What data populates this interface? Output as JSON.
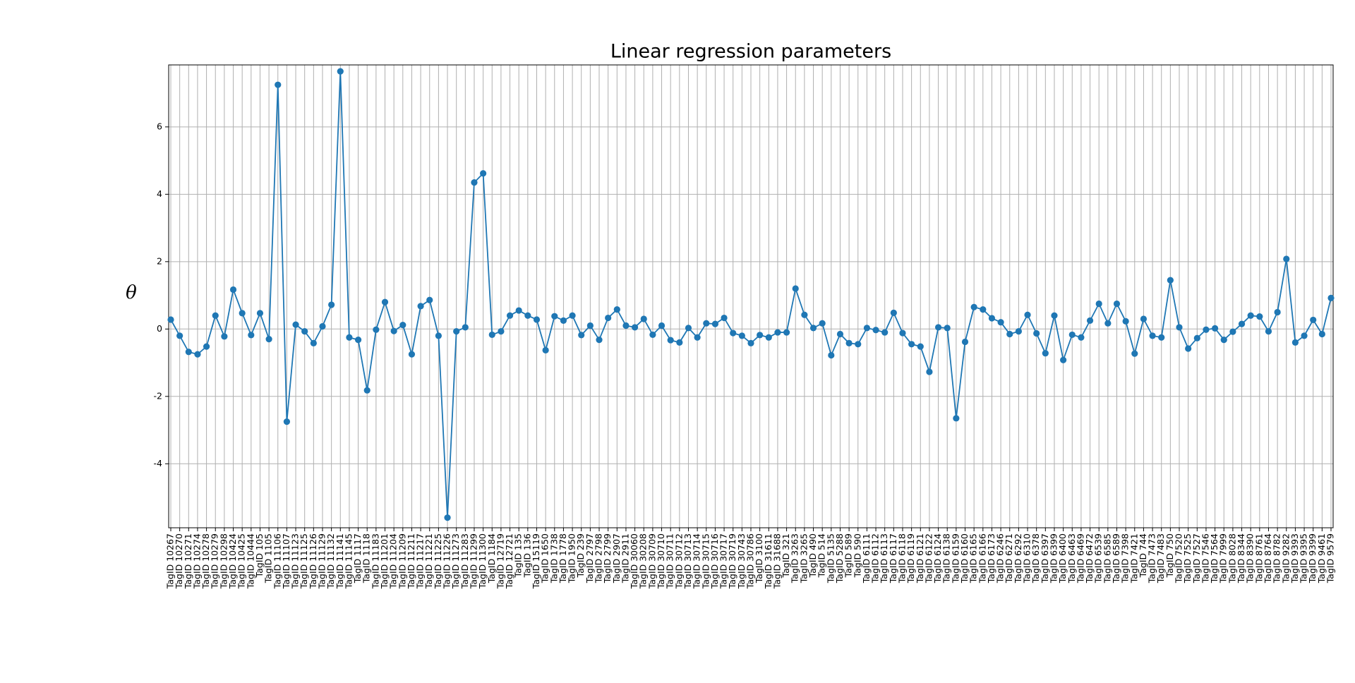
{
  "chart_data": {
    "type": "line",
    "title": "Linear regression parameters",
    "ylabel": "θ",
    "categories": [
      "TagID 10267",
      "TagID 10270",
      "TagID 10271",
      "TagID 10274",
      "TagID 10278",
      "TagID 10279",
      "TagID 10298",
      "TagID 10424",
      "TagID 10425",
      "TagID 10444",
      "TagID 105",
      "TagID 1105",
      "TagID 11106",
      "TagID 11107",
      "TagID 11123",
      "TagID 11125",
      "TagID 11126",
      "TagID 11129",
      "TagID 11132",
      "TagID 11141",
      "TagID 11145",
      "TagID 1117",
      "TagID 1118",
      "TagID 11183",
      "TagID 11201",
      "TagID 11204",
      "TagID 11209",
      "TagID 11211",
      "TagID 11217",
      "TagID 11221",
      "TagID 11225",
      "TagID 11226",
      "TagID 11273",
      "TagID 11283",
      "TagID 11299",
      "TagID 11300",
      "TagID 1184",
      "TagID 12719",
      "TagID 12721",
      "TagID 135",
      "TagID 136",
      "TagID 15119",
      "TagID 1650",
      "TagID 1738",
      "TagID 1778",
      "TagID 1950",
      "TagID 239",
      "TagID 2797",
      "TagID 2798",
      "TagID 2799",
      "TagID 2907",
      "TagID 2911",
      "TagID 30060",
      "TagID 30208",
      "TagID 30709",
      "TagID 30710",
      "TagID 30711",
      "TagID 30712",
      "TagID 30713",
      "TagID 30714",
      "TagID 30715",
      "TagID 30716",
      "TagID 30717",
      "TagID 30719",
      "TagID 30743",
      "TagID 30786",
      "TagID 3100",
      "TagID 31611",
      "TagID 31688",
      "TagID 321",
      "TagID 3263",
      "TagID 3265",
      "TagID 490",
      "TagID 514",
      "TagID 5135",
      "TagID 5288",
      "TagID 589",
      "TagID 590",
      "TagID 6111",
      "TagID 6112",
      "TagID 6113",
      "TagID 6117",
      "TagID 6118",
      "TagID 6119",
      "TagID 6121",
      "TagID 6122",
      "TagID 6124",
      "TagID 6138",
      "TagID 6159",
      "TagID 6160",
      "TagID 6165",
      "TagID 6166",
      "TagID 6173",
      "TagID 6246",
      "TagID 6271",
      "TagID 6292",
      "TagID 6310",
      "TagID 6378",
      "TagID 6397",
      "TagID 6399",
      "TagID 6400",
      "TagID 6463",
      "TagID 6469",
      "TagID 6472",
      "TagID 6539",
      "TagID 6585",
      "TagID 6589",
      "TagID 7398",
      "TagID 7421",
      "TagID 744",
      "TagID 7473",
      "TagID 7483",
      "TagID 750",
      "TagID 7520",
      "TagID 7525",
      "TagID 7527",
      "TagID 7546",
      "TagID 7564",
      "TagID 7999",
      "TagID 8028",
      "TagID 8344",
      "TagID 8390",
      "TagID 8761",
      "TagID 8764",
      "TagID 8782",
      "TagID 9282",
      "TagID 9393",
      "TagID 9395",
      "TagID 9399",
      "TagID 9461",
      "TagID 9579"
    ],
    "values": [
      0.28,
      -0.2,
      -0.68,
      -0.75,
      -0.52,
      0.4,
      -0.22,
      1.17,
      0.47,
      -0.18,
      0.47,
      -0.3,
      7.25,
      -2.75,
      0.13,
      -0.07,
      -0.42,
      0.08,
      0.72,
      7.65,
      -0.25,
      -0.32,
      -1.82,
      -0.02,
      0.8,
      -0.06,
      0.12,
      -0.75,
      0.68,
      0.86,
      -0.2,
      -5.6,
      -0.07,
      0.05,
      4.35,
      4.62,
      -0.17,
      -0.07,
      0.4,
      0.55,
      0.4,
      0.28,
      -0.63,
      0.38,
      0.25,
      0.4,
      -0.18,
      0.1,
      -0.32,
      0.33,
      0.58,
      0.1,
      0.05,
      0.3,
      -0.17,
      0.1,
      -0.33,
      -0.4,
      0.03,
      -0.25,
      0.17,
      0.15,
      0.33,
      -0.12,
      -0.2,
      -0.42,
      -0.18,
      -0.25,
      -0.1,
      -0.1,
      1.2,
      0.42,
      0.03,
      0.17,
      -0.78,
      -0.15,
      -0.42,
      -0.45,
      0.03,
      -0.03,
      -0.1,
      0.48,
      -0.12,
      -0.45,
      -0.52,
      -1.27,
      0.05,
      0.03,
      -2.65,
      -0.38,
      0.65,
      0.58,
      0.32,
      0.2,
      -0.15,
      -0.07,
      0.42,
      -0.13,
      -0.72,
      0.4,
      -0.92,
      -0.17,
      -0.25,
      0.25,
      0.75,
      0.17,
      0.75,
      0.23,
      -0.73,
      0.3,
      -0.2,
      -0.25,
      1.45,
      0.05,
      -0.58,
      -0.27,
      -0.02,
      0.02,
      -0.32,
      -0.08,
      0.15,
      0.4,
      0.37,
      -0.07,
      0.5,
      2.08,
      -0.4,
      -0.2,
      0.27,
      -0.15,
      0.92
    ],
    "color": "#1f77b4",
    "ylim": [
      -5.9,
      7.84
    ],
    "yticks": [
      -4,
      -2,
      0,
      2,
      4,
      6
    ],
    "grid": true
  }
}
